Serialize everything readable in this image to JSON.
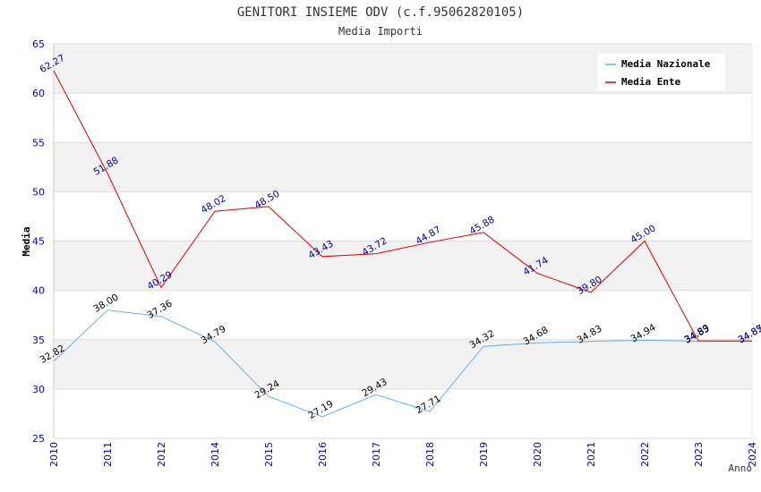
{
  "chart_data": {
    "type": "line",
    "title": "GENITORI INSIEME ODV (c.f.95062820105)",
    "subtitle": "Media Importi",
    "xlabel": "Anno",
    "ylabel": "Media",
    "ylim": [
      25,
      65
    ],
    "yticks": [
      "25",
      "30",
      "35",
      "40",
      "45",
      "50",
      "55",
      "60",
      "65"
    ],
    "categories": [
      "2010",
      "2011",
      "2012",
      "2014",
      "2015",
      "2016",
      "2017",
      "2018",
      "2019",
      "2020",
      "2021",
      "2022",
      "2023",
      "2024"
    ],
    "grid": true,
    "legend_position": "top-right",
    "series": [
      {
        "name": "Media Nazionale",
        "color": "#6aaee8",
        "label_color": "#000000",
        "values": [
          32.82,
          38.0,
          37.36,
          34.79,
          29.24,
          27.19,
          29.43,
          27.71,
          34.32,
          34.68,
          34.83,
          34.94,
          34.83,
          34.85
        ],
        "labels": [
          "32.82",
          "38.00",
          "37.36",
          "34.79",
          "29.24",
          "27.19",
          "29.43",
          "27.71",
          "34.32",
          "34.68",
          "34.83",
          "34.94",
          "34.83",
          "34.85"
        ]
      },
      {
        "name": "Media Ente",
        "color": "#dd0000",
        "label_color": "#00008b",
        "values": [
          62.27,
          51.88,
          40.29,
          48.02,
          48.5,
          43.43,
          43.72,
          44.87,
          45.88,
          41.74,
          39.8,
          45.0,
          34.89,
          34.87
        ],
        "labels": [
          "62.27",
          "51.88",
          "40.29",
          "48.02",
          "48.50",
          "43.43",
          "43.72",
          "44.87",
          "45.88",
          "41.74",
          "39.80",
          "45.00",
          "34.89",
          "34.87"
        ]
      }
    ],
    "colors": {
      "axis_text": "#0000cc",
      "band": "#f2f2f2",
      "grid": "#dddddd",
      "title": "#333333"
    }
  }
}
